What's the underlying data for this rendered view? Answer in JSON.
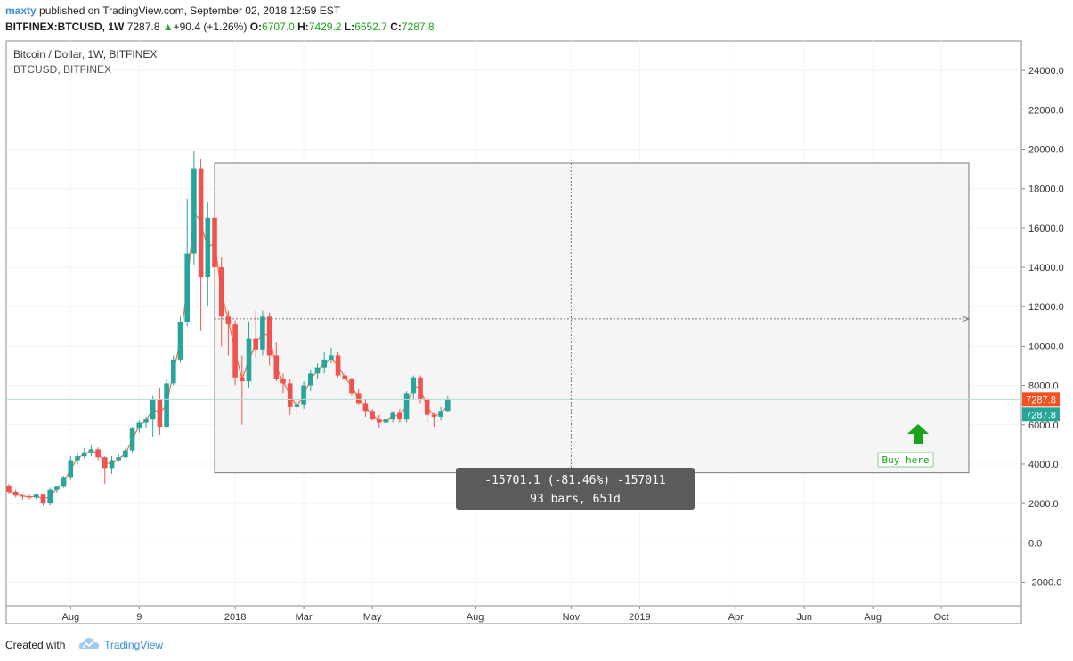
{
  "header": {
    "author": "maxty",
    "published_text": "published on TradingView.com, September 02, 2018 12:59 EST",
    "symbol": "BITFINEX:BTCUSD, 1W",
    "last": "7287.8",
    "change": "+90.4 (+1.26%)",
    "o_label": "O:",
    "o_value": "6707.0",
    "h_label": "H:",
    "h_value": "7429.2",
    "l_label": "L:",
    "l_value": "6652.7",
    "c_label": "C:",
    "c_value": "7287.8"
  },
  "legend": {
    "title": "Bitcoin / Dollar, 1W, BITFINEX",
    "subtitle": "BTCUSD, BITFINEX"
  },
  "price_labels": {
    "last_red": "7287.8",
    "last_green": "7287.8"
  },
  "measure": {
    "line1": "-15701.1 (-81.46%) -157011",
    "line2": "93 bars, 651d"
  },
  "annotation": {
    "buy_label": "Buy here"
  },
  "footer": {
    "created": "Created with",
    "brand": "TradingView"
  },
  "colors": {
    "up": "#26a69a",
    "down": "#ef5350",
    "ma": "#f26d40",
    "accent": "#3a8fd6"
  },
  "chart_data": {
    "type": "candlestick",
    "timeframe": "1W",
    "ylim": [
      -3200,
      25500
    ],
    "yticks": [
      -2000,
      0,
      2000,
      4000,
      6000,
      8000,
      10000,
      12000,
      14000,
      16000,
      18000,
      20000,
      22000,
      24000
    ],
    "ytick_labels": [
      "-2000.0",
      "0.0",
      "2000.0",
      "4000.0",
      "6000.0",
      "8000.0",
      "10000.0",
      "12000.0",
      "14000.0",
      "16000.0",
      "18000.0",
      "20000.0",
      "22000.0",
      "24000.0"
    ],
    "xrange": [
      0,
      149
    ],
    "xticks": [
      {
        "label": "Aug",
        "x": 9
      },
      {
        "label": "9",
        "x": 19
      },
      {
        "label": "2018",
        "x": 33
      },
      {
        "label": "Mar",
        "x": 43
      },
      {
        "label": "May",
        "x": 53
      },
      {
        "label": "Aug",
        "x": 68
      },
      {
        "label": "Nov",
        "x": 82
      },
      {
        "label": "2019",
        "x": 92
      },
      {
        "label": "Apr",
        "x": 106
      },
      {
        "label": "Jun",
        "x": 116
      },
      {
        "label": "Aug",
        "x": 126
      },
      {
        "label": "Oct",
        "x": 136
      }
    ],
    "candles": [
      [
        2900,
        3000,
        2500,
        2600
      ],
      [
        2600,
        2700,
        2300,
        2400
      ],
      [
        2400,
        2500,
        2200,
        2350
      ],
      [
        2350,
        2450,
        2200,
        2300
      ],
      [
        2300,
        2500,
        2200,
        2450
      ],
      [
        2450,
        2500,
        1900,
        2000
      ],
      [
        2000,
        2800,
        1900,
        2700
      ],
      [
        2700,
        2900,
        2550,
        2850
      ],
      [
        2850,
        3400,
        2800,
        3300
      ],
      [
        3300,
        4400,
        3200,
        4200
      ],
      [
        4200,
        4600,
        4000,
        4400
      ],
      [
        4400,
        4800,
        4300,
        4600
      ],
      [
        4600,
        5000,
        4400,
        4750
      ],
      [
        4750,
        4850,
        4200,
        4350
      ],
      [
        4350,
        4400,
        3000,
        3800
      ],
      [
        3800,
        4400,
        3500,
        4200
      ],
      [
        4200,
        4500,
        4100,
        4350
      ],
      [
        4350,
        4800,
        4300,
        4700
      ],
      [
        4700,
        5900,
        4600,
        5800
      ],
      [
        5800,
        6200,
        5600,
        6100
      ],
      [
        6100,
        6400,
        5800,
        6300
      ],
      [
        6300,
        7500,
        5400,
        7300
      ],
      [
        7300,
        7900,
        5500,
        5900
      ],
      [
        5900,
        8300,
        5800,
        8100
      ],
      [
        8100,
        9500,
        8000,
        9300
      ],
      [
        9300,
        11500,
        9200,
        11200
      ],
      [
        11200,
        17500,
        11000,
        14700
      ],
      [
        14700,
        19891,
        14100,
        19000
      ],
      [
        19000,
        19500,
        10800,
        13500
      ],
      [
        13500,
        17300,
        12000,
        16500
      ],
      [
        16500,
        17200,
        13000,
        14000
      ],
      [
        14000,
        14500,
        10000,
        11500
      ],
      [
        11500,
        11800,
        9500,
        11100
      ],
      [
        11100,
        11300,
        8000,
        8400
      ],
      [
        8400,
        9500,
        6000,
        8200
      ],
      [
        8200,
        11200,
        7900,
        10400
      ],
      [
        10400,
        11800,
        9400,
        9800
      ],
      [
        9800,
        11800,
        9500,
        11500
      ],
      [
        11500,
        11700,
        9000,
        9500
      ],
      [
        9500,
        10200,
        8200,
        8300
      ],
      [
        8300,
        8600,
        7600,
        8100
      ],
      [
        8100,
        8300,
        6500,
        6900
      ],
      [
        6900,
        7300,
        6500,
        7000
      ],
      [
        7000,
        8200,
        6800,
        8000
      ],
      [
        8000,
        8800,
        7700,
        8600
      ],
      [
        8600,
        9100,
        8300,
        8900
      ],
      [
        8900,
        9700,
        8600,
        9300
      ],
      [
        9300,
        9900,
        9100,
        9500
      ],
      [
        9500,
        9700,
        8400,
        8500
      ],
      [
        8500,
        8700,
        8200,
        8300
      ],
      [
        8300,
        8400,
        7500,
        7600
      ],
      [
        7600,
        7800,
        7000,
        7100
      ],
      [
        7100,
        7300,
        6400,
        6700
      ],
      [
        6700,
        6800,
        6200,
        6300
      ],
      [
        6300,
        6500,
        5800,
        6100
      ],
      [
        6100,
        6400,
        5900,
        6300
      ],
      [
        6300,
        6700,
        6100,
        6600
      ],
      [
        6600,
        6800,
        6100,
        6300
      ],
      [
        6300,
        7700,
        6100,
        7600
      ],
      [
        7600,
        8500,
        7300,
        8400
      ],
      [
        8400,
        8500,
        7100,
        7300
      ],
      [
        7300,
        7400,
        6100,
        6500
      ],
      [
        6500,
        6600,
        5900,
        6400
      ],
      [
        6400,
        6900,
        6200,
        6700
      ],
      [
        6707.0,
        7429.2,
        6652.7,
        7287.8
      ]
    ],
    "moving_average_color": "#f26d40",
    "measure_rect": {
      "x0": 30,
      "x1": 140,
      "y0": 19300,
      "y1": 3560
    },
    "vertical_dashed_x": 82,
    "horizontal_dashed_y": 11380,
    "last_price": 7287.8
  }
}
